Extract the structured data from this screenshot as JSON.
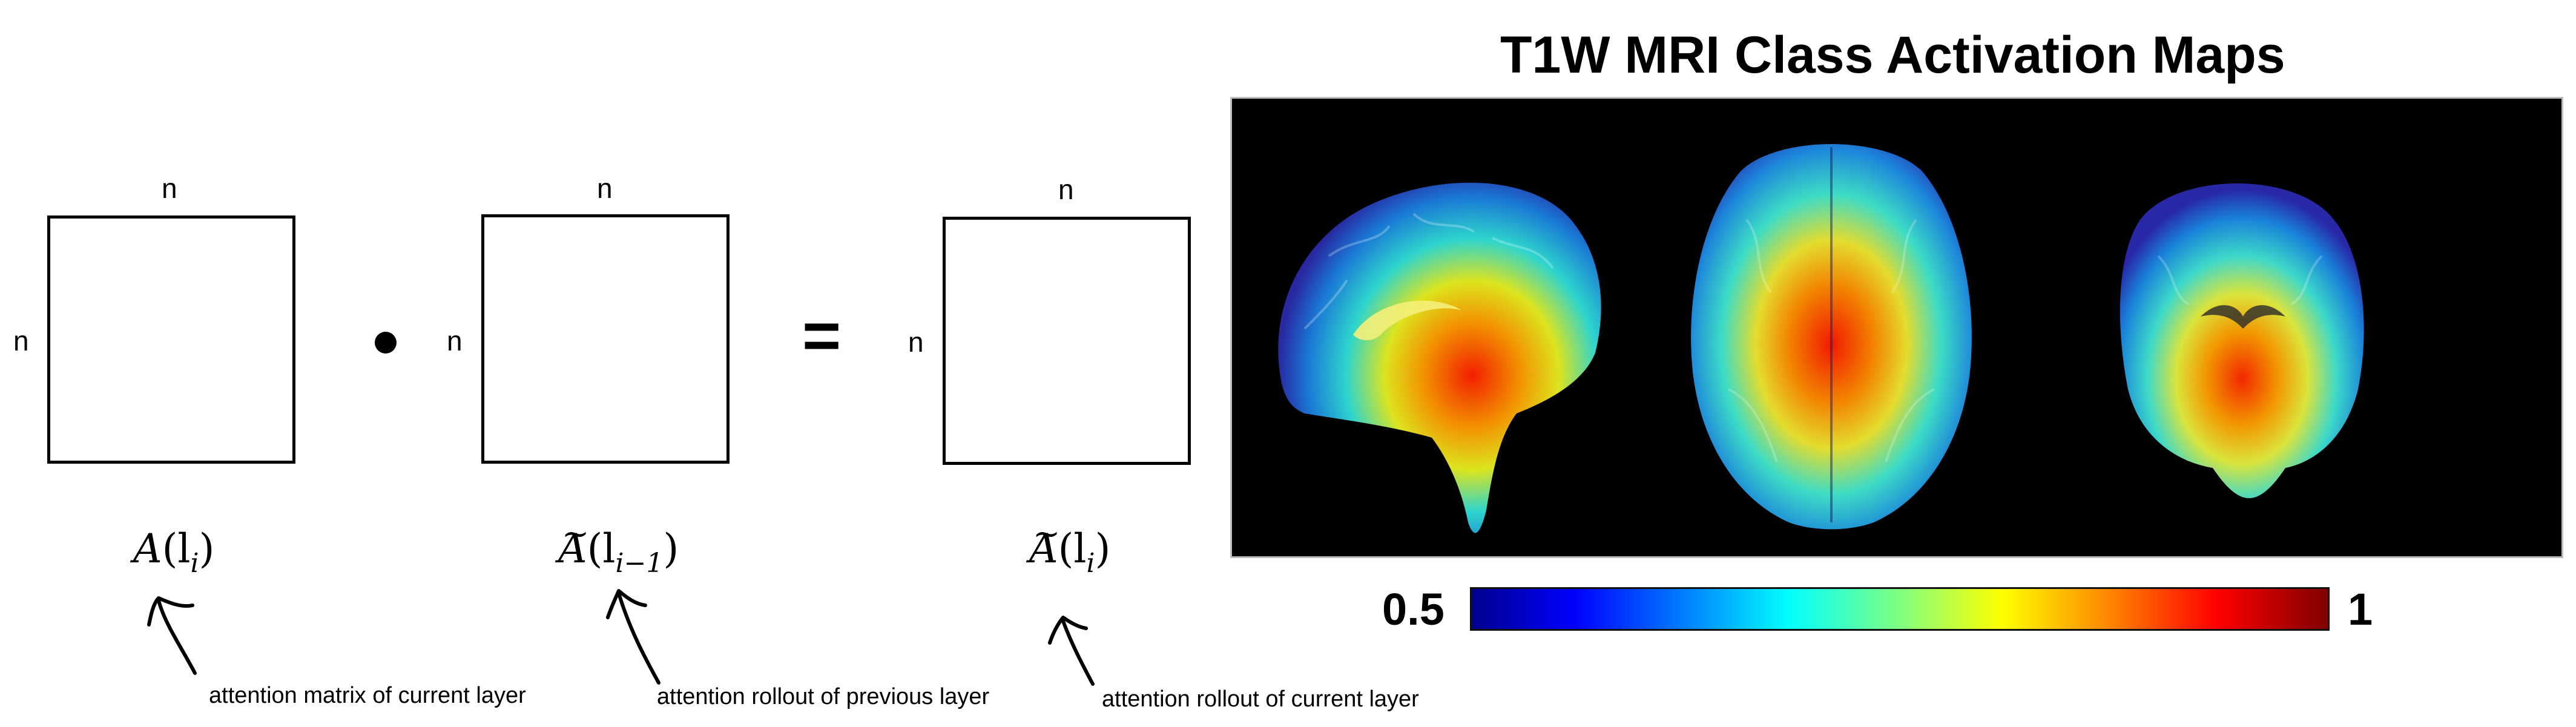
{
  "diagram": {
    "dim_label": "n",
    "operator_equals": "=",
    "matrices": [
      {
        "formula_base": "A",
        "formula_args": "(l",
        "formula_sub": "i",
        "formula_close": ")",
        "tilde": "",
        "caption": "attention matrix of current layer"
      },
      {
        "formula_base": "A",
        "formula_args": "(l",
        "formula_sub": "i−1",
        "formula_close": ")",
        "tilde": "~",
        "caption": "attention rollout of previous layer"
      },
      {
        "formula_base": "A",
        "formula_args": "(l",
        "formula_sub": "i",
        "formula_close": ")",
        "tilde": "~",
        "caption": "attention rollout of current layer"
      }
    ]
  },
  "cam_figure": {
    "title": "T1W MRI Class Activation Maps",
    "views": [
      "sagittal",
      "axial",
      "coronal"
    ],
    "colorbar": {
      "min_label": "0.5",
      "max_label": "1",
      "colormap": "jet"
    }
  }
}
